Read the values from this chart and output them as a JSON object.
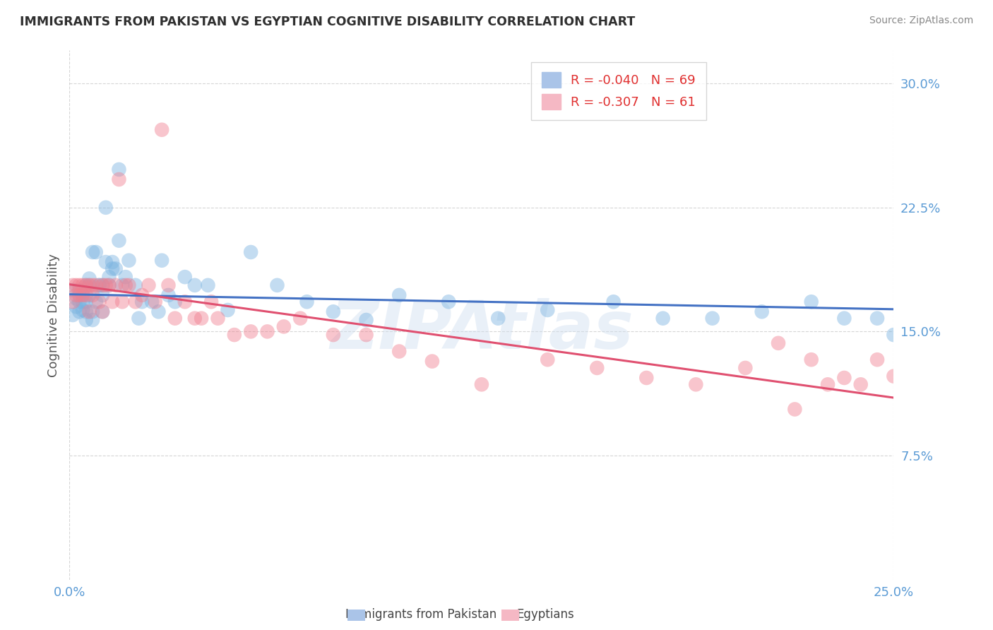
{
  "title": "IMMIGRANTS FROM PAKISTAN VS EGYPTIAN COGNITIVE DISABILITY CORRELATION CHART",
  "source": "Source: ZipAtlas.com",
  "ylabel": "Cognitive Disability",
  "xlim": [
    0.0,
    0.25
  ],
  "ylim": [
    0.0,
    0.32
  ],
  "yticks": [
    0.075,
    0.15,
    0.225,
    0.3
  ],
  "ytick_labels": [
    "7.5%",
    "15.0%",
    "22.5%",
    "30.0%"
  ],
  "xticks": [
    0.0,
    0.25
  ],
  "xtick_labels": [
    "0.0%",
    "25.0%"
  ],
  "scatter_pakistan": {
    "color": "#7ab3e0",
    "alpha": 0.45,
    "size": 220,
    "x": [
      0.001,
      0.001,
      0.002,
      0.002,
      0.003,
      0.003,
      0.003,
      0.004,
      0.004,
      0.004,
      0.005,
      0.005,
      0.005,
      0.005,
      0.006,
      0.006,
      0.006,
      0.007,
      0.007,
      0.007,
      0.008,
      0.008,
      0.009,
      0.009,
      0.01,
      0.01,
      0.01,
      0.011,
      0.011,
      0.012,
      0.012,
      0.013,
      0.013,
      0.014,
      0.015,
      0.015,
      0.016,
      0.017,
      0.018,
      0.02,
      0.021,
      0.022,
      0.025,
      0.027,
      0.028,
      0.03,
      0.032,
      0.035,
      0.038,
      0.042,
      0.048,
      0.055,
      0.063,
      0.072,
      0.08,
      0.09,
      0.1,
      0.115,
      0.13,
      0.145,
      0.165,
      0.18,
      0.195,
      0.21,
      0.225,
      0.235,
      0.245,
      0.25,
      0.255
    ],
    "y": [
      0.175,
      0.16,
      0.17,
      0.165,
      0.175,
      0.168,
      0.162,
      0.172,
      0.163,
      0.168,
      0.178,
      0.162,
      0.157,
      0.168,
      0.172,
      0.182,
      0.178,
      0.198,
      0.157,
      0.162,
      0.168,
      0.198,
      0.178,
      0.178,
      0.162,
      0.172,
      0.178,
      0.225,
      0.192,
      0.178,
      0.183,
      0.192,
      0.188,
      0.188,
      0.205,
      0.248,
      0.178,
      0.183,
      0.193,
      0.178,
      0.158,
      0.168,
      0.168,
      0.162,
      0.193,
      0.172,
      0.168,
      0.183,
      0.178,
      0.178,
      0.163,
      0.198,
      0.178,
      0.168,
      0.162,
      0.157,
      0.172,
      0.168,
      0.158,
      0.163,
      0.168,
      0.158,
      0.158,
      0.162,
      0.168,
      0.158,
      0.158,
      0.148,
      0.162
    ]
  },
  "scatter_egypt": {
    "color": "#f08090",
    "alpha": 0.45,
    "size": 220,
    "x": [
      0.001,
      0.001,
      0.002,
      0.002,
      0.003,
      0.003,
      0.004,
      0.004,
      0.005,
      0.005,
      0.006,
      0.006,
      0.007,
      0.007,
      0.008,
      0.009,
      0.01,
      0.01,
      0.011,
      0.012,
      0.013,
      0.014,
      0.015,
      0.016,
      0.017,
      0.018,
      0.02,
      0.022,
      0.024,
      0.026,
      0.028,
      0.03,
      0.032,
      0.035,
      0.038,
      0.04,
      0.043,
      0.045,
      0.05,
      0.055,
      0.06,
      0.065,
      0.07,
      0.08,
      0.09,
      0.1,
      0.11,
      0.125,
      0.145,
      0.16,
      0.175,
      0.19,
      0.205,
      0.215,
      0.225,
      0.235,
      0.245,
      0.25,
      0.24,
      0.23,
      0.22
    ],
    "y": [
      0.168,
      0.178,
      0.178,
      0.172,
      0.172,
      0.178,
      0.178,
      0.172,
      0.172,
      0.178,
      0.178,
      0.162,
      0.172,
      0.178,
      0.178,
      0.168,
      0.178,
      0.162,
      0.178,
      0.178,
      0.168,
      0.178,
      0.242,
      0.168,
      0.178,
      0.178,
      0.168,
      0.172,
      0.178,
      0.168,
      0.272,
      0.178,
      0.158,
      0.168,
      0.158,
      0.158,
      0.168,
      0.158,
      0.148,
      0.15,
      0.15,
      0.153,
      0.158,
      0.148,
      0.148,
      0.138,
      0.132,
      0.118,
      0.133,
      0.128,
      0.122,
      0.118,
      0.128,
      0.143,
      0.133,
      0.122,
      0.133,
      0.123,
      0.118,
      0.118,
      0.103
    ]
  },
  "trend_pakistan": {
    "color": "#4472c4",
    "x_start": 0.0,
    "x_end": 0.25,
    "y_start": 0.1725,
    "y_end": 0.1635,
    "linewidth": 2.2
  },
  "trend_egypt": {
    "color": "#e05070",
    "x_start": 0.0,
    "x_end": 0.25,
    "y_start": 0.1785,
    "y_end": 0.11,
    "linewidth": 2.2
  },
  "background_color": "#ffffff",
  "grid_color": "#cccccc",
  "title_color": "#2f2f2f",
  "axis_color": "#5b9bd5",
  "watermark_text": "ZIPAtlas",
  "watermark_color": "#d0dff0",
  "watermark_alpha": 0.45,
  "legend_blue_color": "#aac4e8",
  "legend_pink_color": "#f5b8c4",
  "legend_text_color": "#e03030"
}
